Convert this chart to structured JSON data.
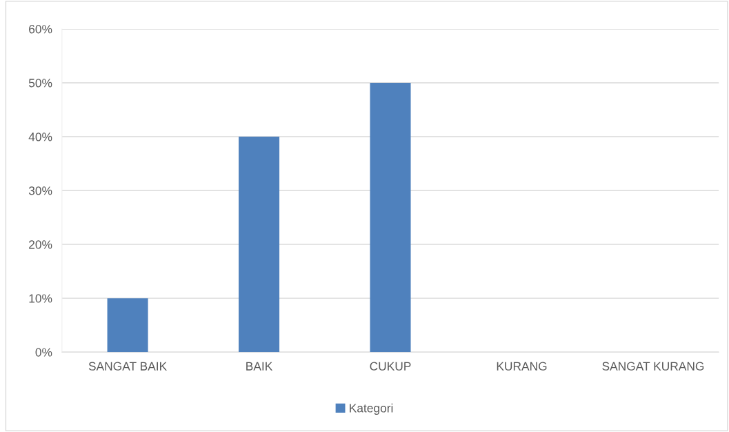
{
  "chart_data": {
    "type": "bar",
    "categories": [
      "SANGAT BAIK",
      "BAIK",
      "CUKUP",
      "KURANG",
      "SANGAT KURANG"
    ],
    "series": [
      {
        "name": "Kategori",
        "color": "#4f81bd",
        "values": [
          10,
          40,
          50,
          0,
          0
        ]
      }
    ],
    "ylim": [
      0,
      60
    ],
    "yticks": [
      {
        "value": 0,
        "label": "0%"
      },
      {
        "value": 10,
        "label": "10%"
      },
      {
        "value": 20,
        "label": "20%"
      },
      {
        "value": 30,
        "label": "30%"
      },
      {
        "value": 40,
        "label": "40%"
      },
      {
        "value": 50,
        "label": "50%"
      },
      {
        "value": 60,
        "label": "60%"
      }
    ],
    "grid": "y",
    "legend": "bottom"
  }
}
